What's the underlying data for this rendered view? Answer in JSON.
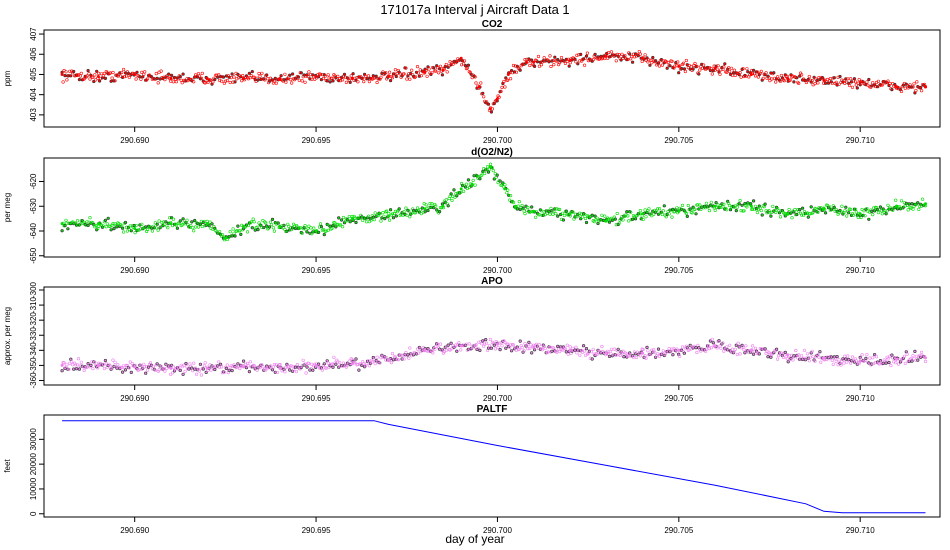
{
  "figure": {
    "title": "171017a   Interval j Aircraft Data 1",
    "xlabel": "day of year"
  },
  "colors": {
    "CO2": "#ff0000",
    "O2N2": "#00dd00",
    "APO": "#ee82ee",
    "PALTF": "#0000ff"
  },
  "chart_data": [
    {
      "type": "scatter",
      "title": "CO2",
      "ylabel": "ppm",
      "xlim": [
        290.6875,
        290.7122
      ],
      "ylim": [
        402.4,
        407.2
      ],
      "xticks": [
        "290.690",
        "290.695",
        "290.700",
        "290.705",
        "290.710"
      ],
      "yticks": [
        "403",
        "404",
        "405",
        "406",
        "407"
      ],
      "series": [
        {
          "color": "#ff0000",
          "points": [
            [
              290.688,
              405.0
            ],
            [
              290.689,
              404.9
            ],
            [
              290.69,
              405.0
            ],
            [
              290.691,
              404.8
            ],
            [
              290.692,
              404.8
            ],
            [
              290.693,
              404.8
            ],
            [
              290.694,
              404.8
            ],
            [
              290.695,
              404.9
            ],
            [
              290.696,
              404.8
            ],
            [
              290.697,
              404.9
            ],
            [
              290.698,
              405.1
            ],
            [
              290.6985,
              405.2
            ],
            [
              290.699,
              405.8
            ],
            [
              290.6995,
              404.4
            ],
            [
              290.6998,
              403.3
            ],
            [
              290.7,
              403.8
            ],
            [
              290.7003,
              405.0
            ],
            [
              290.7008,
              405.6
            ],
            [
              290.701,
              405.6
            ],
            [
              290.702,
              405.7
            ],
            [
              290.703,
              405.9
            ],
            [
              290.704,
              405.8
            ],
            [
              290.705,
              405.4
            ],
            [
              290.706,
              405.3
            ],
            [
              290.707,
              405.0
            ],
            [
              290.708,
              404.8
            ],
            [
              290.709,
              404.7
            ],
            [
              290.71,
              404.6
            ],
            [
              290.711,
              404.4
            ],
            [
              290.7118,
              404.4
            ]
          ]
        }
      ]
    },
    {
      "type": "scatter",
      "title": "d(O2/N2)",
      "ylabel": "per meg",
      "xlim": [
        290.6875,
        290.7122
      ],
      "ylim": [
        -650.5,
        -610.5
      ],
      "xticks": [
        "290.690",
        "290.695",
        "290.700",
        "290.705",
        "290.710"
      ],
      "yticks": [
        "-650",
        "-640",
        "-630",
        "-620"
      ],
      "series": [
        {
          "color": "#00dd00",
          "points": [
            [
              290.688,
              -637
            ],
            [
              290.689,
              -637
            ],
            [
              290.69,
              -639
            ],
            [
              290.691,
              -637
            ],
            [
              290.692,
              -637
            ],
            [
              290.6925,
              -643
            ],
            [
              290.693,
              -638
            ],
            [
              290.694,
              -638
            ],
            [
              290.695,
              -640
            ],
            [
              290.696,
              -635
            ],
            [
              290.697,
              -634
            ],
            [
              290.698,
              -631
            ],
            [
              290.6985,
              -630
            ],
            [
              290.699,
              -623
            ],
            [
              290.6993,
              -621
            ],
            [
              290.6998,
              -614
            ],
            [
              290.7002,
              -623
            ],
            [
              290.7005,
              -630
            ],
            [
              290.701,
              -632
            ],
            [
              290.702,
              -633
            ],
            [
              290.703,
              -636
            ],
            [
              290.704,
              -633
            ],
            [
              290.705,
              -632
            ],
            [
              290.706,
              -630
            ],
            [
              290.707,
              -630
            ],
            [
              290.708,
              -633
            ],
            [
              290.709,
              -631
            ],
            [
              290.71,
              -633
            ],
            [
              290.711,
              -630
            ],
            [
              290.7118,
              -629
            ]
          ]
        }
      ]
    },
    {
      "type": "scatter",
      "title": "APO",
      "ylabel": "approx. per meg",
      "xlim": [
        290.6875,
        290.7122
      ],
      "ylim": [
        -363,
        -298
      ],
      "xticks": [
        "290.690",
        "290.695",
        "290.700",
        "290.705",
        "290.710"
      ],
      "yticks": [
        "-360",
        "-350",
        "-340",
        "-330",
        "-320",
        "-310",
        "-300"
      ],
      "series": [
        {
          "color": "#ee82ee",
          "points": [
            [
              290.688,
              -350
            ],
            [
              290.689,
              -350
            ],
            [
              290.69,
              -351
            ],
            [
              290.691,
              -352
            ],
            [
              290.692,
              -352
            ],
            [
              290.693,
              -351
            ],
            [
              290.694,
              -352
            ],
            [
              290.695,
              -350
            ],
            [
              290.696,
              -349
            ],
            [
              290.697,
              -346
            ],
            [
              290.698,
              -340
            ],
            [
              290.699,
              -337
            ],
            [
              290.7,
              -336
            ],
            [
              290.701,
              -338
            ],
            [
              290.702,
              -340
            ],
            [
              290.703,
              -342
            ],
            [
              290.704,
              -342
            ],
            [
              290.705,
              -340
            ],
            [
              290.706,
              -337
            ],
            [
              290.707,
              -340
            ],
            [
              290.708,
              -343
            ],
            [
              290.709,
              -345
            ],
            [
              290.71,
              -347
            ],
            [
              290.711,
              -346
            ],
            [
              290.7118,
              -345
            ]
          ]
        }
      ]
    },
    {
      "type": "line",
      "title": "PALTF",
      "ylabel": "feet",
      "xlim": [
        290.6875,
        290.7122
      ],
      "ylim": [
        -1300,
        39800
      ],
      "xticks": [
        "290.690",
        "290.695",
        "290.700",
        "290.705",
        "290.710"
      ],
      "yticks": [
        "0",
        "10000",
        "20000",
        "30000"
      ],
      "series": [
        {
          "color": "#0000ff",
          "points": [
            [
              290.688,
              37500
            ],
            [
              290.6966,
              37500
            ],
            [
              290.697,
              36000
            ],
            [
              290.7,
              27500
            ],
            [
              290.703,
              19500
            ],
            [
              290.706,
              11500
            ],
            [
              290.7085,
              4000
            ],
            [
              290.709,
              1000
            ],
            [
              290.7095,
              400
            ],
            [
              290.7118,
              400
            ]
          ]
        }
      ]
    }
  ]
}
